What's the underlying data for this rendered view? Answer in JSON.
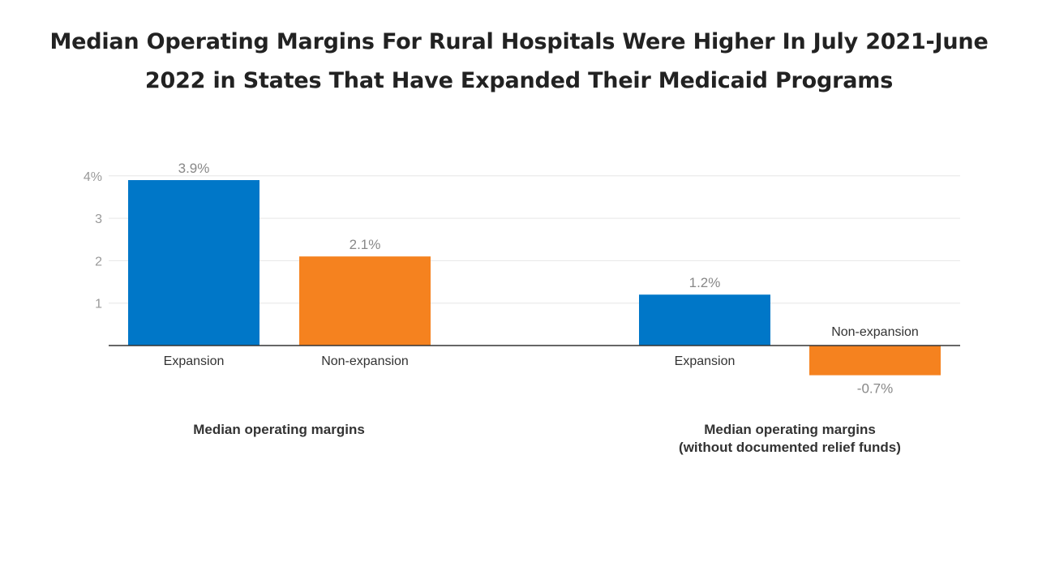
{
  "title": "Median Operating Margins For Rural Hospitals Were Higher In July 2021-June 2022 in States That Have Expanded Their Medicaid Programs",
  "colors": {
    "expansion": "#0077c8",
    "non_expansion": "#f5821f",
    "axis": "#333333",
    "grid": "#e6e6e6",
    "tick_text": "#999999",
    "value_text": "#888888",
    "category_text": "#333333"
  },
  "chart_data": {
    "type": "bar",
    "ylim": [
      -0.8,
      4
    ],
    "yticks": [
      1,
      2,
      3,
      4
    ],
    "ytick_labels": [
      "1",
      "2",
      "3",
      "4%"
    ],
    "grid": true,
    "groups": [
      {
        "label": [
          "Median operating margins"
        ],
        "bars": [
          {
            "category": "Expansion",
            "value": 3.9,
            "value_label": "3.9%",
            "series": "expansion"
          },
          {
            "category": "Non-expansion",
            "value": 2.1,
            "value_label": "2.1%",
            "series": "non_expansion"
          }
        ]
      },
      {
        "label": [
          "Median operating margins",
          "(without documented relief funds)"
        ],
        "bars": [
          {
            "category": "Expansion",
            "value": 1.2,
            "value_label": "1.2%",
            "series": "expansion"
          },
          {
            "category": "Non-expansion",
            "value": -0.7,
            "value_label": "-0.7%",
            "series": "non_expansion"
          }
        ]
      }
    ]
  }
}
